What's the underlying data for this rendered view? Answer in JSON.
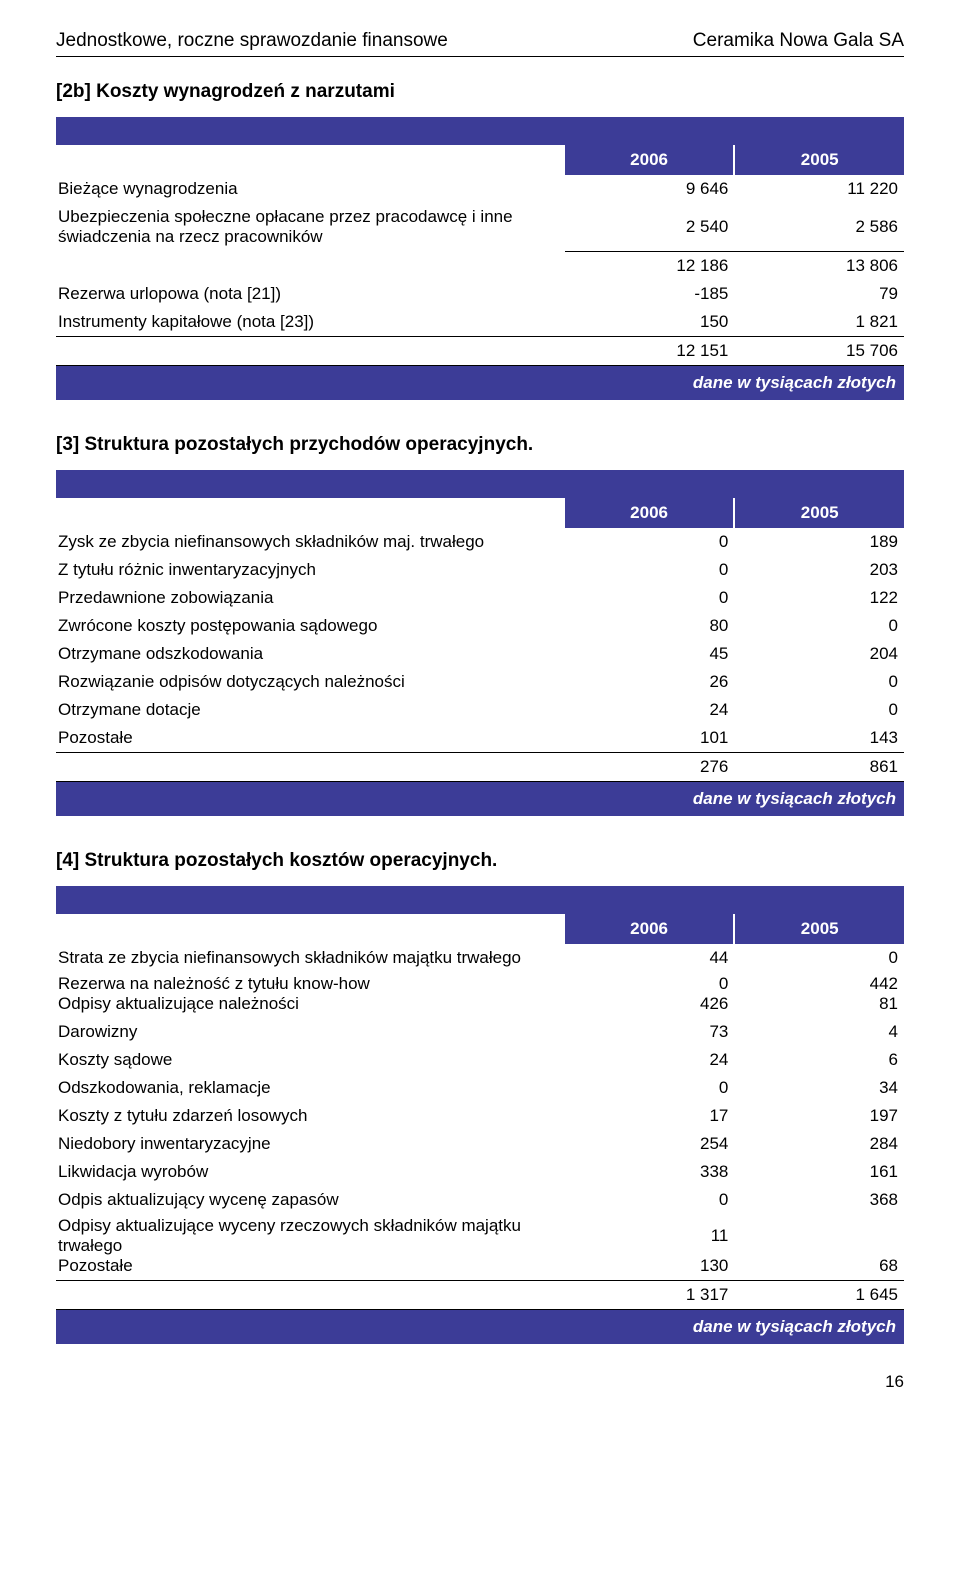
{
  "header": {
    "left": "Jednostkowe, roczne sprawozdanie finansowe",
    "right": "Ceramika Nowa Gala SA"
  },
  "sections": {
    "s2b": {
      "title": "[2b]  Koszty wynagrodzeń z narzutami",
      "year_a": "2006",
      "year_b": "2005",
      "rows": [
        {
          "label": "Bieżące wynagrodzenia",
          "a": "9 646",
          "b": "11 220"
        },
        {
          "label": "Ubezpieczenia społeczne opłacane przez pracodawcę i inne świadczenia na rzecz pracowników",
          "a": "2 540",
          "b": "2 586"
        }
      ],
      "subtotal": {
        "a": "12 186",
        "b": "13 806"
      },
      "rows2": [
        {
          "label": "Rezerwa urlopowa (nota [21])",
          "a": "-185",
          "b": "79"
        },
        {
          "label": "Instrumenty kapitałowe (nota [23])",
          "a": "150",
          "b": "1 821"
        }
      ],
      "total": {
        "a": "12 151",
        "b": "15 706"
      },
      "footer": "dane w tysiącach złotych"
    },
    "s3": {
      "title": "[3] Struktura pozostałych przychodów operacyjnych.",
      "year_a": "2006",
      "year_b": "2005",
      "rows": [
        {
          "label": "Zysk ze zbycia niefinansowych składników maj. trwałego",
          "a": "0",
          "b": "189"
        },
        {
          "label": "Z tytułu różnic inwentaryzacyjnych",
          "a": "0",
          "b": "203"
        },
        {
          "label": "Przedawnione zobowiązania",
          "a": "0",
          "b": "122"
        },
        {
          "label": "Zwrócone koszty postępowania sądowego",
          "a": "80",
          "b": "0"
        },
        {
          "label": "Otrzymane odszkodowania",
          "a": "45",
          "b": "204"
        },
        {
          "label": "Rozwiązanie odpisów dotyczących należności",
          "a": "26",
          "b": "0"
        },
        {
          "label": "Otrzymane dotacje",
          "a": "24",
          "b": "0"
        },
        {
          "label": "Pozostałe",
          "a": "101",
          "b": "143"
        }
      ],
      "total": {
        "a": "276",
        "b": "861"
      },
      "footer": "dane w tysiącach złotych"
    },
    "s4": {
      "title": "[4] Struktura pozostałych kosztów operacyjnych.",
      "year_a": "2006",
      "year_b": "2005",
      "rows_top": [
        {
          "label": "Strata ze zbycia niefinansowych składników majątku trwałego",
          "a": "44",
          "b": "0"
        }
      ],
      "pair1": {
        "label": "Rezerwa na należność z tytułu know-how",
        "a": "0",
        "b": "442"
      },
      "pair2": {
        "label": "Odpisy aktualizujące należności",
        "a": "426",
        "b": "81"
      },
      "rows_mid": [
        {
          "label": "Darowizny",
          "a": "73",
          "b": "4"
        },
        {
          "label": "Koszty sądowe",
          "a": "24",
          "b": "6"
        },
        {
          "label": "Odszkodowania, reklamacje",
          "a": "0",
          "b": "34"
        },
        {
          "label": "Koszty z tytułu zdarzeń losowych",
          "a": "17",
          "b": "197"
        },
        {
          "label": "Niedobory inwentaryzacyjne",
          "a": "254",
          "b": "284"
        },
        {
          "label": "Likwidacja wyrobów",
          "a": "338",
          "b": "161"
        },
        {
          "label": "Odpis aktualizujący wycenę zapasów",
          "a": "0",
          "b": "368"
        }
      ],
      "pair3": {
        "label": "Odpisy aktualizujące wyceny rzeczowych składników majątku trwałego",
        "a": "11",
        "b": ""
      },
      "pair4": {
        "label": "Pozostałe",
        "a": "130",
        "b": "68"
      },
      "total": {
        "a": "1 317",
        "b": "1 645"
      },
      "footer": "dane w tysiącach złotych"
    }
  },
  "pagenum": "16",
  "colors": {
    "band": "#3c3c97",
    "text_on_band": "#ffffff",
    "text": "#000000",
    "bg": "#ffffff"
  }
}
